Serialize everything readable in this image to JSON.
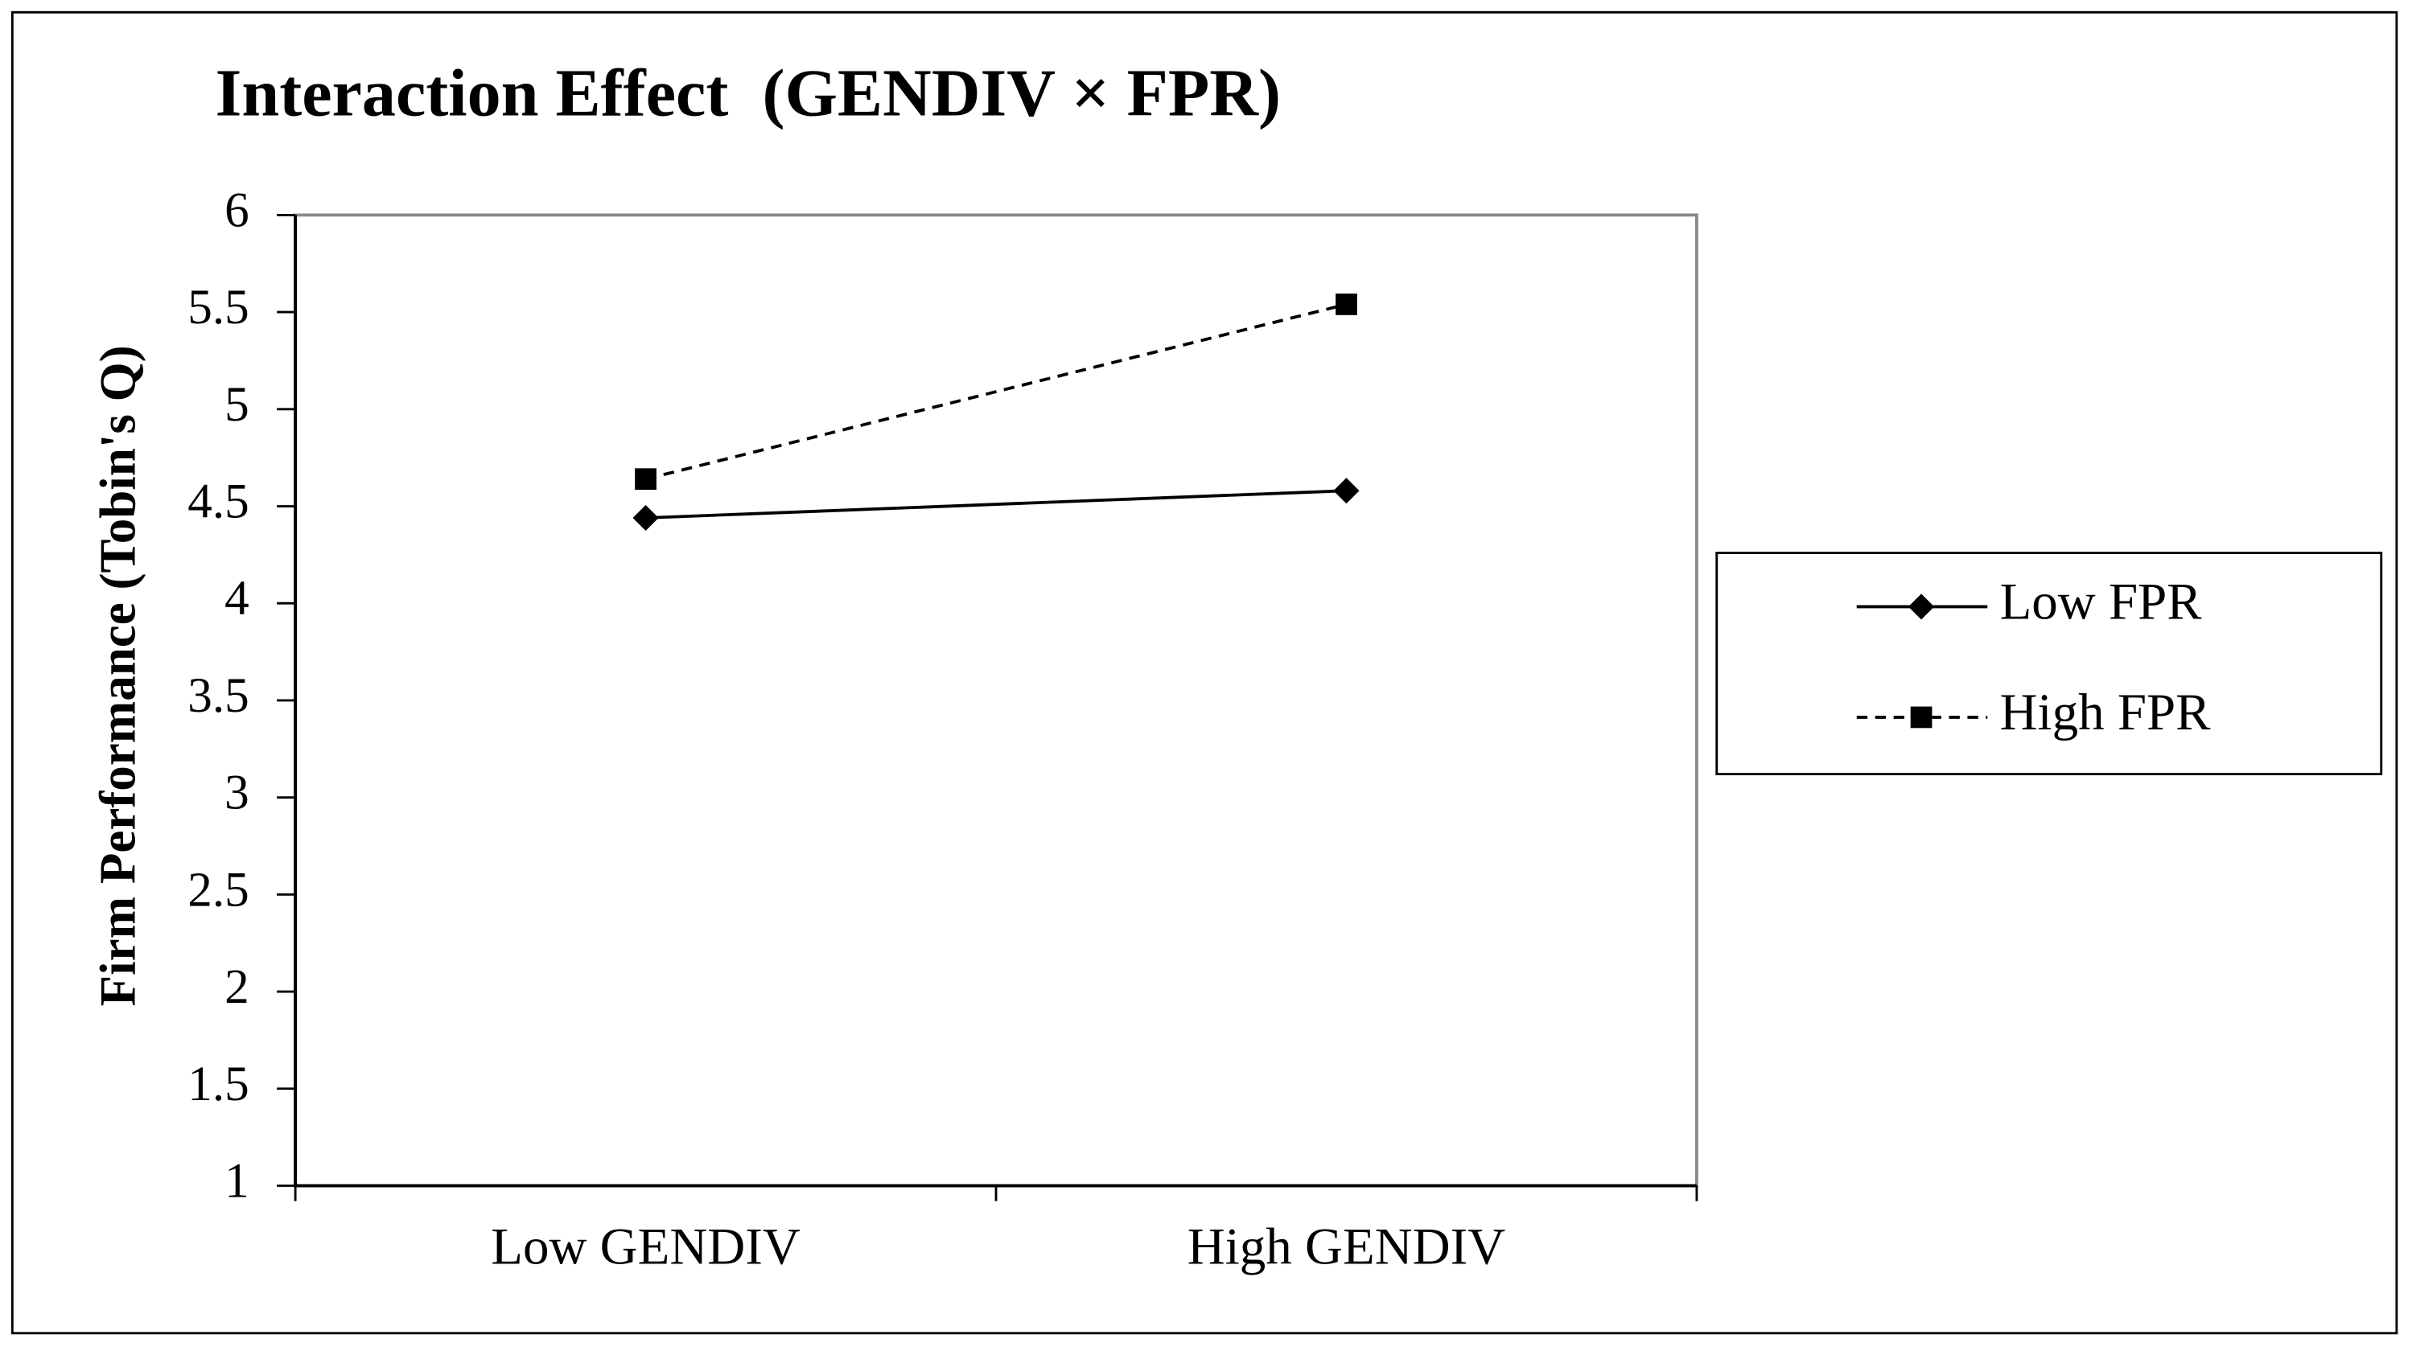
{
  "chart_data": {
    "type": "line",
    "title": "Interaction Effect  (GENDIV × FPR)",
    "y_label": "Firm Performance (Tobin's Q)",
    "categories": [
      "Low GENDIV",
      "High GENDIV"
    ],
    "series": [
      {
        "name": "Low FPR",
        "color": "#000000",
        "values": [
          4.44,
          4.58
        ],
        "marker": "diamond",
        "linestyle": "solid"
      },
      {
        "name": "High FPR",
        "color": "#000000",
        "values": [
          4.64,
          5.54
        ],
        "marker": "square",
        "linestyle": "dashed"
      }
    ],
    "ylim": [
      1,
      6
    ],
    "yticks": [
      1,
      1.5,
      2,
      2.5,
      3,
      3.5,
      4,
      4.5,
      5,
      5.5,
      6
    ],
    "legend": "right"
  }
}
